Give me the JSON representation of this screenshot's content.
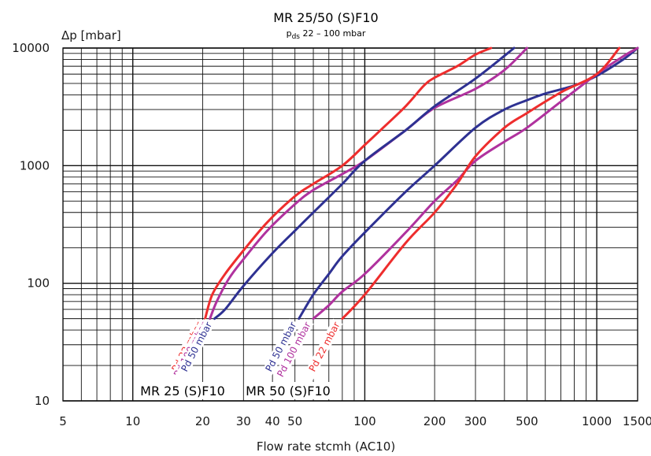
{
  "chart_data": {
    "type": "line",
    "title": "MR 25/50 (S)F10",
    "subtitle_prefix": "p",
    "subtitle_sub": "ds",
    "subtitle_text": " 22 – 100 mbar",
    "xlabel": "Flow rate stcmh (AC10)",
    "ylabel": "Δp [mbar]",
    "x_scale": "log",
    "y_scale": "log",
    "xlim": [
      5,
      1500
    ],
    "ylim": [
      10,
      10000
    ],
    "grid": true,
    "x_ticks": [
      "5",
      "10",
      "20",
      "30",
      "40",
      "50",
      "100",
      "200",
      "300",
      "500",
      "1000",
      "1500"
    ],
    "y_ticks": [
      "10",
      "100",
      "1000",
      "10000"
    ],
    "group_labels": [
      "MR 25 (S)F10",
      "MR 50 (S)F10"
    ],
    "colors": {
      "red": "#ee2d2d",
      "magenta": "#b0329e",
      "blue": "#2e3192"
    },
    "series": [
      {
        "name": "Pd 22 mbar",
        "group": "MR 25 (S)F10",
        "color": "#ee2d2d",
        "x": [
          20.5,
          22,
          25,
          30,
          38,
          50,
          60,
          80,
          100,
          120,
          150,
          180,
          200,
          250,
          300,
          350
        ],
        "y": [
          50,
          80,
          120,
          190,
          330,
          550,
          700,
          1000,
          1500,
          2100,
          3200,
          4800,
          5600,
          7000,
          8800,
          10000
        ]
      },
      {
        "name": "Pd 100 mbar",
        "group": "MR 25 (S)F10",
        "color": "#b0329e",
        "x": [
          21.5,
          23,
          26,
          30,
          38,
          50,
          60,
          80,
          100,
          150,
          200,
          300,
          400,
          500
        ],
        "y": [
          50,
          70,
          110,
          160,
          280,
          470,
          620,
          850,
          1100,
          2000,
          3100,
          4500,
          6500,
          10000
        ]
      },
      {
        "name": "Pd 50 mbar",
        "group": "MR 25 (S)F10",
        "color": "#2e3192",
        "x": [
          22.5,
          25,
          30,
          40,
          50,
          60,
          80,
          100,
          150,
          200,
          300,
          440
        ],
        "y": [
          50,
          60,
          95,
          180,
          280,
          400,
          700,
          1100,
          2000,
          3200,
          5500,
          10000
        ]
      },
      {
        "name": "Pd 50 mbar",
        "group": "MR 50 (S)F10",
        "color": "#2e3192",
        "x": [
          52,
          60,
          70,
          80,
          100,
          150,
          200,
          300,
          400,
          500,
          600,
          800,
          1000,
          1300,
          1500
        ],
        "y": [
          50,
          80,
          120,
          170,
          270,
          600,
          1000,
          2100,
          3000,
          3600,
          4100,
          4800,
          5800,
          8000,
          10000
        ]
      },
      {
        "name": "Pd 100 mbar",
        "group": "MR 50 (S)F10",
        "color": "#b0329e",
        "x": [
          60,
          70,
          80,
          100,
          150,
          200,
          250,
          300,
          400,
          500,
          700,
          1000,
          1300,
          1500
        ],
        "y": [
          50,
          65,
          85,
          120,
          270,
          500,
          750,
          1100,
          1600,
          2100,
          3500,
          6000,
          8500,
          10000
        ]
      },
      {
        "name": "Pd 22 mbar",
        "group": "MR 50 (S)F10",
        "color": "#ee2d2d",
        "x": [
          80,
          100,
          150,
          200,
          250,
          300,
          400,
          500,
          700,
          1000,
          1250
        ],
        "y": [
          50,
          80,
          220,
          400,
          700,
          1200,
          2100,
          2800,
          4200,
          6000,
          10000
        ]
      }
    ]
  }
}
